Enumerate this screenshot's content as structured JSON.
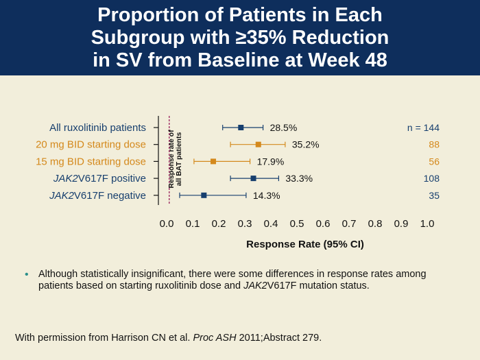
{
  "header": {
    "title_lines": [
      "Proportion of Patients in Each",
      "Subgroup with ≥35% Reduction",
      "in SV from Baseline at Week 48"
    ]
  },
  "chart_data": {
    "type": "forest",
    "title": "",
    "xlabel": "Response Rate (95% CI)",
    "xlim": [
      0.0,
      1.0
    ],
    "xticks": [
      "0.0",
      "0.1",
      "0.2",
      "0.3",
      "0.4",
      "0.5",
      "0.6",
      "0.7",
      "0.8",
      "0.9",
      "1.0"
    ],
    "reference_line": {
      "x": 0.01,
      "label_lines": [
        "Response rate of",
        "all BAT patients"
      ],
      "color": "#9a1f5a"
    },
    "n_header": "n = 144",
    "rows": [
      {
        "label": "All ruxolitinib patients",
        "label_parts": [
          {
            "text": "All ruxolitinib patients",
            "italic": false
          }
        ],
        "estimate": 0.285,
        "ci": [
          0.215,
          0.37
        ],
        "value_label": "28.5%",
        "n": "",
        "color": "#173f6e",
        "label_color": "#173f6e"
      },
      {
        "label": "20 mg BID starting dose",
        "label_parts": [
          {
            "text": "20 mg BID starting dose",
            "italic": false
          }
        ],
        "estimate": 0.352,
        "ci": [
          0.245,
          0.455
        ],
        "value_label": "35.2%",
        "n": "88",
        "color": "#d4891c",
        "label_color": "#d4891c"
      },
      {
        "label": "15 mg BID starting dose",
        "label_parts": [
          {
            "text": "15 mg BID starting dose",
            "italic": false
          }
        ],
        "estimate": 0.179,
        "ci": [
          0.105,
          0.32
        ],
        "value_label": "17.9%",
        "n": "56",
        "color": "#d4891c",
        "label_color": "#d4891c"
      },
      {
        "label": "JAK2V617F positive",
        "label_parts": [
          {
            "text": "JAK2",
            "italic": true
          },
          {
            "text": "V617F positive",
            "italic": false
          }
        ],
        "estimate": 0.333,
        "ci": [
          0.245,
          0.43
        ],
        "value_label": "33.3%",
        "n": "108",
        "color": "#173f6e",
        "label_color": "#173f6e"
      },
      {
        "label": "JAK2V617F negative",
        "label_parts": [
          {
            "text": "JAK2",
            "italic": true
          },
          {
            "text": "V617F negative",
            "italic": false
          }
        ],
        "estimate": 0.143,
        "ci": [
          0.05,
          0.305
        ],
        "value_label": "14.3%",
        "n": "35",
        "color": "#173f6e",
        "label_color": "#173f6e"
      }
    ]
  },
  "bullet": {
    "text_before": "Although statistically insignificant, there were some differences in response rates among patients based on starting ruxolitinib dose and ",
    "text_italic": "JAK2",
    "text_after": "V617F mutation status."
  },
  "credit": {
    "text_before": "With permission from Harrison CN et al. ",
    "text_italic": "Proc ASH",
    "text_after": " 2011;Abstract 279."
  }
}
